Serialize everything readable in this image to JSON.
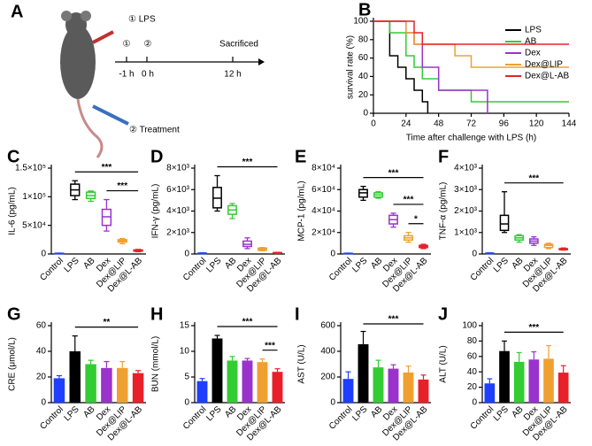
{
  "schematic": {
    "panel": "A",
    "lps": "① LPS",
    "step1": "①",
    "step2": "②",
    "t1": "-1 h",
    "t2": "0 h",
    "t3": "12 h",
    "end": "Sacrificed",
    "treatment": "② Treatment"
  },
  "chart_data": [
    {
      "type": "survival",
      "panel": "B",
      "xlabel": "Time after challenge with LPS (h)",
      "ylabel": "survival rate (%)",
      "xlim": [
        0,
        144
      ],
      "xticks": [
        0,
        24,
        48,
        72,
        96,
        120,
        144
      ],
      "ylim": [
        0,
        100
      ],
      "yticks": [
        0,
        20,
        40,
        60,
        80,
        100
      ],
      "series": [
        {
          "name": "LPS",
          "color": "#000000",
          "x": [
            0,
            12,
            12,
            18,
            18,
            24,
            24,
            30,
            30,
            36,
            36,
            40,
            40
          ],
          "values": [
            100,
            100,
            62.5,
            62.5,
            50,
            50,
            37.5,
            37.5,
            25,
            25,
            12.5,
            12.5,
            0
          ]
        },
        {
          "name": "AB",
          "color": "#33cc33",
          "x": [
            0,
            12,
            12,
            24,
            24,
            30,
            30,
            36,
            36,
            48,
            48,
            72,
            72,
            144
          ],
          "values": [
            100,
            100,
            87.5,
            87.5,
            62.5,
            62.5,
            50,
            50,
            37.5,
            37.5,
            25,
            25,
            12.5,
            12.5
          ]
        },
        {
          "name": "Dex",
          "color": "#9933cc",
          "x": [
            0,
            24,
            24,
            30,
            30,
            36,
            36,
            48,
            48,
            84,
            84
          ],
          "values": [
            100,
            100,
            87.5,
            87.5,
            75,
            75,
            50,
            50,
            25,
            25,
            0
          ]
        },
        {
          "name": "Dex@LIP",
          "color": "#f0a030",
          "x": [
            0,
            24,
            24,
            30,
            30,
            60,
            60,
            72,
            72,
            144
          ],
          "values": [
            100,
            100,
            87.5,
            87.5,
            75,
            75,
            62.5,
            62.5,
            50,
            50
          ]
        },
        {
          "name": "Dex@L-AB",
          "color": "#e8202a",
          "x": [
            0,
            30,
            30,
            36,
            36,
            144
          ],
          "values": [
            100,
            100,
            87.5,
            87.5,
            75,
            75
          ]
        }
      ]
    },
    {
      "type": "box",
      "panel": "C",
      "ylabel": "IL-6 (pg/mL)",
      "ylim": [
        0,
        150000
      ],
      "yticks": [
        0,
        {
          "value": 50000,
          "label": "5×10⁴"
        },
        {
          "value": 100000,
          "label": "1×10⁵"
        },
        {
          "value": 150000,
          "label": "1.5×10⁵"
        }
      ],
      "categories": [
        "Control",
        "LPS",
        "AB",
        "Dex",
        "Dex@LIP",
        "Dex@L-AB"
      ],
      "colors": [
        "#1f3fff",
        "#000000",
        "#33cc33",
        "#9933cc",
        "#f0a030",
        "#e8202a"
      ],
      "values": [
        [
          500,
          800,
          1000,
          1200,
          1500
        ],
        [
          95000,
          102000,
          112000,
          122000,
          128000
        ],
        [
          92000,
          97000,
          102000,
          108000,
          110000
        ],
        [
          40000,
          50000,
          65000,
          78000,
          95000
        ],
        [
          18000,
          21000,
          23000,
          25000,
          27000
        ],
        [
          4000,
          5000,
          6000,
          7000,
          8000
        ]
      ],
      "annotations": [
        {
          "text": "***",
          "from": "LPS",
          "to": "Dex@L-AB"
        },
        {
          "text": "***",
          "from": "Dex",
          "to": "Dex@L-AB"
        }
      ]
    },
    {
      "type": "box",
      "panel": "D",
      "ylabel": "IFN-γ (pg/mL)",
      "ylim": [
        0,
        8000
      ],
      "yticks": [
        0,
        {
          "value": 2000,
          "label": "2×10³"
        },
        {
          "value": 4000,
          "label": "4×10³"
        },
        {
          "value": 6000,
          "label": "6×10³"
        },
        {
          "value": 8000,
          "label": "8×10³"
        }
      ],
      "categories": [
        "Control",
        "LPS",
        "AB",
        "Dex",
        "Dex@LIP",
        "Dex@L-AB"
      ],
      "colors": [
        "#1f3fff",
        "#000000",
        "#33cc33",
        "#9933cc",
        "#f0a030",
        "#e8202a"
      ],
      "values": [
        [
          30,
          50,
          60,
          80,
          100
        ],
        [
          4000,
          4300,
          5200,
          6200,
          7300
        ],
        [
          3300,
          3700,
          4100,
          4500,
          4700
        ],
        [
          500,
          700,
          900,
          1200,
          1500
        ],
        [
          300,
          350,
          450,
          550,
          600
        ],
        [
          50,
          80,
          100,
          130,
          150
        ]
      ],
      "annotations": [
        {
          "text": "***",
          "from": "LPS",
          "to": "Dex@L-AB"
        }
      ]
    },
    {
      "type": "box",
      "panel": "E",
      "ylabel": "MCP-1 (pg/mL)",
      "ylim": [
        0,
        80000
      ],
      "yticks": [
        0,
        {
          "value": 20000,
          "label": "2×10⁴"
        },
        {
          "value": 40000,
          "label": "4×10⁴"
        },
        {
          "value": 60000,
          "label": "6×10⁴"
        },
        {
          "value": 80000,
          "label": "8×10⁴"
        }
      ],
      "categories": [
        "Control",
        "LPS",
        "AB",
        "Dex",
        "Dex@LIP",
        "Dex@L-AB"
      ],
      "colors": [
        "#1f3fff",
        "#000000",
        "#33cc33",
        "#9933cc",
        "#f0a030",
        "#e8202a"
      ],
      "values": [
        [
          200,
          400,
          500,
          600,
          800
        ],
        [
          50000,
          53000,
          57000,
          60000,
          63000
        ],
        [
          52000,
          53000,
          55000,
          57000,
          58000
        ],
        [
          25000,
          28000,
          32000,
          36000,
          38000
        ],
        [
          11000,
          13000,
          15000,
          17000,
          20000
        ],
        [
          5000,
          6000,
          7000,
          8000,
          9000
        ]
      ],
      "annotations": [
        {
          "text": "***",
          "from": "LPS",
          "to": "Dex@L-AB"
        },
        {
          "text": "***",
          "from": "Dex",
          "to": "Dex@L-AB"
        },
        {
          "text": "*",
          "from": "Dex@LIP",
          "to": "Dex@L-AB"
        }
      ]
    },
    {
      "type": "box",
      "panel": "F",
      "ylabel": "TNF-α (pg/mL)",
      "ylim": [
        0,
        4000
      ],
      "yticks": [
        0,
        {
          "value": 1000,
          "label": "1×10³"
        },
        {
          "value": 2000,
          "label": "2×10³"
        },
        {
          "value": 3000,
          "label": "3×10³"
        },
        {
          "value": 4000,
          "label": "4×10³"
        }
      ],
      "categories": [
        "Control",
        "LPS",
        "AB",
        "Dex",
        "Dex@LIP",
        "Dex@L-AB"
      ],
      "colors": [
        "#1f3fff",
        "#000000",
        "#33cc33",
        "#9933cc",
        "#f0a030",
        "#e8202a"
      ],
      "values": [
        [
          10,
          20,
          30,
          40,
          50
        ],
        [
          1000,
          1100,
          1400,
          1800,
          2900
        ],
        [
          550,
          650,
          750,
          850,
          900
        ],
        [
          400,
          500,
          600,
          700,
          800
        ],
        [
          250,
          300,
          400,
          450,
          500
        ],
        [
          180,
          200,
          220,
          250,
          280
        ]
      ],
      "annotations": [
        {
          "text": "***",
          "from": "LPS",
          "to": "Dex@L-AB"
        }
      ]
    },
    {
      "type": "bar",
      "panel": "G",
      "ylabel": "CRE (μmol/L)",
      "ylim": [
        0,
        60
      ],
      "yticks": [
        0,
        20,
        40,
        60
      ],
      "categories": [
        "Control",
        "LPS",
        "AB",
        "Dex",
        "Dex@LIP",
        "Dex@L-AB"
      ],
      "colors": [
        "#1f3fff",
        "#000000",
        "#33cc33",
        "#9933cc",
        "#f0a030",
        "#e8202a"
      ],
      "values": [
        19,
        40,
        30,
        27,
        27,
        23
      ],
      "errors": [
        2,
        12,
        3,
        5,
        5,
        2
      ],
      "annotations": [
        {
          "text": "**",
          "from": "LPS",
          "to": "Dex@L-AB"
        }
      ]
    },
    {
      "type": "bar",
      "panel": "H",
      "ylabel": "BUN (mmol/L)",
      "ylim": [
        0,
        15
      ],
      "yticks": [
        0,
        5,
        10,
        15
      ],
      "categories": [
        "Control",
        "LPS",
        "AB",
        "Dex",
        "Dex@LIP",
        "Dex@L-AB"
      ],
      "colors": [
        "#1f3fff",
        "#000000",
        "#33cc33",
        "#9933cc",
        "#f0a030",
        "#e8202a"
      ],
      "values": [
        4.2,
        12.5,
        8.2,
        8.2,
        7.9,
        6
      ],
      "errors": [
        0.5,
        0.6,
        0.8,
        0.4,
        0.6,
        0.6
      ],
      "annotations": [
        {
          "text": "***",
          "from": "LPS",
          "to": "Dex@L-AB"
        },
        {
          "text": "***",
          "from": "Dex@LIP",
          "to": "Dex@L-AB"
        }
      ]
    },
    {
      "type": "bar",
      "panel": "I",
      "ylabel": "AST (U/L)",
      "ylim": [
        0,
        600
      ],
      "yticks": [
        0,
        200,
        400,
        600
      ],
      "categories": [
        "Control",
        "LPS",
        "AB",
        "Dex",
        "Dex@LIP",
        "Dex@L-AB"
      ],
      "colors": [
        "#1f3fff",
        "#000000",
        "#33cc33",
        "#9933cc",
        "#f0a030",
        "#e8202a"
      ],
      "values": [
        185,
        455,
        275,
        265,
        235,
        180
      ],
      "errors": [
        55,
        100,
        55,
        30,
        50,
        35
      ],
      "annotations": [
        {
          "text": "***",
          "from": "LPS",
          "to": "Dex@L-AB"
        }
      ]
    },
    {
      "type": "bar",
      "panel": "J",
      "ylabel": "ALT (U/L)",
      "ylim": [
        0,
        100
      ],
      "yticks": [
        0,
        20,
        40,
        60,
        80,
        100
      ],
      "categories": [
        "Control",
        "LPS",
        "AB",
        "Dex",
        "Dex@LIP",
        "Dex@L-AB"
      ],
      "colors": [
        "#1f3fff",
        "#000000",
        "#33cc33",
        "#9933cc",
        "#f0a030",
        "#e8202a"
      ],
      "values": [
        25,
        67,
        53,
        56,
        57,
        39
      ],
      "errors": [
        6,
        13,
        12,
        10,
        17,
        9
      ],
      "annotations": [
        {
          "text": "***",
          "from": "LPS",
          "to": "Dex@L-AB"
        }
      ]
    }
  ]
}
